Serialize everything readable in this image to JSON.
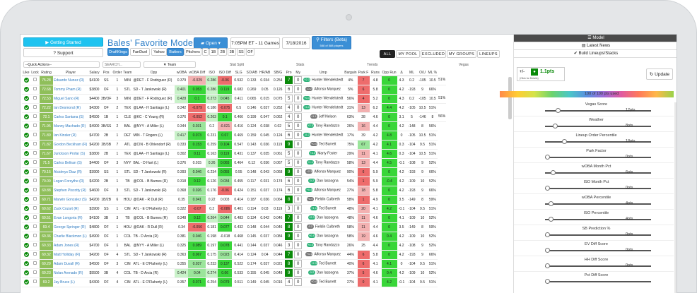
{
  "toolbar": {
    "getting_started": "Getting Started",
    "support": "Support",
    "title": "Bales' Favorite Model",
    "open": "Open",
    "slate": "7:05PM ET - 11 Games",
    "date": "7/18/2016",
    "filters": "Filters (Beta)",
    "filters_sub": "588 of 588 players",
    "quick_actions": "--Quick Actions--",
    "search_placeholder": "SEARCH...",
    "team": "Team"
  },
  "sites": [
    "DraftKings",
    "FanDuel",
    "Yahoo"
  ],
  "positions": [
    "Batters",
    "Pitchers",
    "C",
    "1B",
    "2B",
    "3B",
    "SS",
    "OF"
  ],
  "view_tabs": [
    "ALL",
    "MY POOL",
    "EXCLUDED",
    "MY GROUPS",
    "LINEUPS"
  ],
  "groups": {
    "stat_split": "Stat Split",
    "stats": "Stats",
    "trends": "Trends",
    "vegas": "Vegas"
  },
  "columns": [
    "Like",
    "Lock",
    "Rating",
    "Player",
    "Salary",
    "Pos",
    "Order",
    "Team",
    "Opp",
    "wOBA",
    "wOBA Diff",
    "ISO",
    "ISO Diff",
    "SLG",
    "SO/AB",
    "HR/AB",
    "SB/G",
    "Pro",
    "My",
    "Ump",
    "Bargain",
    "Park F",
    "Runs",
    "Opp Run",
    "Δ",
    "ML",
    "O/U",
    "ML %"
  ],
  "rows": [
    [
      "75.28",
      "Eduardo Nunez (R)",
      "$4100",
      "SS",
      "1",
      "MIN",
      "@DET - F Rodriguez (R)",
      "0.379",
      "-0.029",
      "0.286",
      "-0.06",
      "0.532",
      "0.133",
      "0.034",
      "0.254",
      "7",
      "0",
      "Hunter Wendelstedt",
      "4%",
      "7",
      "4.8",
      "0",
      "4.3",
      "0.2",
      "-105",
      "10.5",
      "51%"
    ],
    [
      "72.68",
      "Tommy Pham (R)",
      "$3800",
      "OF",
      "1",
      "STL",
      "SD - T Jankowski (R)",
      "0.401",
      "0.053",
      "0.286",
      "0.119",
      "0.682",
      "0.269",
      "0.05",
      "0.126",
      "6",
      "0",
      "Alfonso Marquez",
      "5%",
      "6",
      "5.8",
      "0",
      "4.2",
      "-193",
      "9",
      "66%"
    ],
    [
      "72.53",
      "Miguel Sano (R)",
      "$4400",
      "3B/OF",
      "3",
      "MIN",
      "@DET - F Rodriguez (R)",
      "0.428",
      "0.1",
      "0.273",
      "0.045",
      "0.411",
      "0.065",
      "0.015",
      "0.075",
      "5",
      "0",
      "Hunter Wendelstedt",
      "56%",
      "4",
      "5.2",
      "0",
      "4.3",
      "0.2",
      "-105",
      "10.5",
      "51%"
    ],
    [
      "72.22",
      "Ian Desmond (R)",
      "$4300",
      "OF",
      "2",
      "TEX",
      "@LAA - H Santiago (L)",
      "0.342",
      "-0.079",
      "0.186",
      "-0.075",
      "0.5",
      "0.146",
      "0.037",
      "0.252",
      "4",
      "0",
      "Hunter Wendelstedt",
      "31%",
      "13",
      "6.2",
      "4.4",
      "4.2",
      "-105",
      "10.5",
      "51%"
    ],
    [
      "72.1",
      "Carlos Santana (S)",
      "$4500",
      "1B",
      "1",
      "CLE",
      "@KC - C Young (R)",
      "0.376",
      "-0.052",
      "0.263",
      "0.1",
      "0.466",
      "0.199",
      "0.047",
      "0.062",
      "4",
      "0",
      "Jeff Nelson",
      "63%",
      "28",
      "4.6",
      "0",
      "3.1",
      "5",
      "-146",
      "8",
      "56%"
    ],
    [
      "71.95",
      "Manny Machado (R)",
      "$4900",
      "3B/SS",
      "2",
      "BAL",
      "@NYY - A Miller (L)",
      "0.344",
      "0.031",
      "0.2",
      "-0.021",
      "0.416",
      "0.124",
      "0.038",
      "0.02",
      "5",
      "0",
      "Tony Randazzo",
      "26%",
      "16",
      "4.4",
      "0",
      "4.2",
      "-148",
      "8",
      "56%"
    ],
    [
      "71.89",
      "Ian Kinsler (R)",
      "$4700",
      "2B",
      "1",
      "DET",
      "MIN - T Rogers (L)",
      "0.417",
      "0.073",
      "0.231",
      "0.07",
      "0.469",
      "0.159",
      "0.045",
      "0.124",
      "6",
      "0",
      "Hunter Wendelstedt",
      "17%",
      "39",
      "4.2",
      "4.8",
      "0",
      "-105",
      "10.5",
      "51%"
    ],
    [
      "71.82",
      "Gordon Beckham (R)",
      "$4200",
      "2B/3B",
      "7",
      "ATL",
      "@CIN - B Ohlendorf (R)",
      "0.333",
      "0.153",
      "0.259",
      "0.104",
      "0.547",
      "0.143",
      "0.036",
      "0.119",
      "9",
      "0",
      "Ted Barrett",
      "75%",
      "67",
      "4.2",
      "4.1",
      "0.3",
      "-104",
      "9.5",
      "51%"
    ],
    [
      "71.67",
      "Jurickson Profar (S)",
      "$3800",
      "2B",
      "1",
      "TEX",
      "@LAA - H Santiago (L)",
      "0.302",
      "0.11",
      "0.163",
      "0.119",
      "0.431",
      "0.137",
      "0.035",
      "0.061",
      "5",
      "0",
      "Marty Foster",
      "29%",
      "11",
      "4.1",
      "4.6",
      "0.3",
      "-104",
      "10.5",
      "51%"
    ],
    [
      "71.5",
      "Carlos Beltran (S)",
      "$4400",
      "OF",
      "3",
      "NYY",
      "BAL - D Hart (L)",
      "0.376",
      "0.015",
      "0.26",
      "0.065",
      "0.464",
      "0.12",
      "0.036",
      "0.067",
      "5",
      "0",
      "Tony Randazzo",
      "58%",
      "13",
      "4.4",
      "4.5",
      "-0.1",
      "-108",
      "9",
      "52%"
    ],
    [
      "70.15",
      "Alcidmys Diaz (R)",
      "$3900",
      "SS",
      "1",
      "STL",
      "SD - T Jankowski (R)",
      "0.393",
      "0.046",
      "0.234",
      "0.055",
      "0.55",
      "0.148",
      "0.043",
      "0.068",
      "9",
      "0",
      "Alfonso Marquez",
      "90%",
      "6",
      "5.9",
      "0",
      "4.2",
      "-193",
      "9",
      "66%"
    ],
    [
      "70.09",
      "Logan Forsythe (R)",
      "$4200",
      "2B",
      "1",
      "TB",
      "@COL - B Barnes (R)",
      "0.318",
      "0.12",
      "0.126",
      "0.034",
      "0.455",
      "0.117",
      "0.031",
      "0.174",
      "6",
      "0",
      "Dan Iassogna",
      "54%",
      "1",
      "5.9",
      "-0.4",
      "4.2",
      "-109",
      "10",
      "52%"
    ],
    [
      "69.88",
      "Stephen Piscotty (R)",
      "$4600",
      "OF",
      "3",
      "STL",
      "SD - T Jankowski (R)",
      "0.368",
      "0.026",
      "0.176",
      "-0.06",
      "0.424",
      "0.151",
      "0.037",
      "0.174",
      "6",
      "0",
      "Alfonso Marquez",
      "27%",
      "18",
      "5.8",
      "0",
      "4.2",
      "-193",
      "9",
      "66%"
    ],
    [
      "69.71",
      "Marwin Gonzalez (S)",
      "$4200",
      "1B/2B",
      "6",
      "HOU",
      "@OAK - R Dull (R)",
      "0.35",
      "0.041",
      "0.22",
      "0.003",
      "0.414",
      "0.187",
      "0.036",
      "0.064",
      "8",
      "0",
      "Fieldin Culbreth",
      "58%",
      "1",
      "4.9",
      "0",
      "3.5",
      "-149",
      "8",
      "59%"
    ],
    [
      "69.62",
      "Zack Cozart (R)",
      "$3900",
      "SS",
      "1",
      "CIN",
      "ATL - E O'Flaherty (L)",
      "0.322",
      "-0.07",
      "0.2",
      "-0.086",
      "0.401",
      "0.114",
      "0.03",
      "0.119",
      "3",
      "0",
      "Ted Barrett",
      "48%",
      "20",
      "4.1",
      "4.2",
      "-0.1",
      "-104",
      "9.5",
      "51%"
    ],
    [
      "69.51",
      "Evan Longoria (R)",
      "$4100",
      "3B",
      "3",
      "TB",
      "@COL - B Barnes (R)",
      "0.348",
      "0.12",
      "0.264",
      "0.044",
      "0.483",
      "0.134",
      "0.042",
      "0.046",
      "7",
      "0",
      "Dan Iassogna",
      "48%",
      "11",
      "4.6",
      "0",
      "4.1",
      "-109",
      "10",
      "52%"
    ],
    [
      "69.4",
      "George Springer (R)",
      "$4800",
      "OF",
      "1",
      "HOU",
      "@OAK - R Dull (R)",
      "0.34",
      "-0.056",
      "0.181",
      "0.077",
      "0.432",
      "0.148",
      "0.044",
      "0.046",
      "8",
      "0",
      "Fieldin Culbreth",
      "58%",
      "11",
      "4.4",
      "0",
      "3.5",
      "-149",
      "8",
      "59%"
    ],
    [
      "69.36",
      "Charlie Blackmon (L)",
      "$4900",
      "OF",
      "1",
      "COL",
      "TB - D Arcia (R)",
      "0.381",
      "0.046",
      "0.198",
      "-0.018",
      "0.468",
      "0.145",
      "0.037",
      "0.084",
      "9",
      "0",
      "Dan Iassogna",
      "58%",
      "19",
      "4.6",
      "0.4",
      "4.2",
      "-109",
      "10",
      "52%"
    ],
    [
      "69.33",
      "Adam Jones (R)",
      "$4700",
      "OF",
      "1",
      "BAL",
      "@NYY - A Miller (L)",
      "0.325",
      "0.089",
      "0.197",
      "0.078",
      "0.441",
      "0.144",
      "0.037",
      "0.046",
      "3",
      "0",
      "Tony Randazzo",
      "26%",
      "25",
      "4.4",
      "0",
      "4.2",
      "-108",
      "9",
      "52%"
    ],
    [
      "69.32",
      "Matt Holliday (R)",
      "$4200",
      "OF",
      "4",
      "STL",
      "SD - T Jankowski (R)",
      "0.363",
      "0.067",
      "0.175",
      "0.023",
      "0.414",
      "0.124",
      "0.04",
      "0.044",
      "7",
      "0",
      "Alfonso Marquez",
      "44%",
      "6",
      "5.8",
      "0",
      "4.2",
      "-193",
      "9",
      "66%"
    ],
    [
      "69.29",
      "Adam Duvall (R)",
      "$4500",
      "OF",
      "3",
      "CIN",
      "ATL - E O'Flaherty (L)",
      "0.355",
      "0.037",
      "0.233",
      "0.137",
      "0.522",
      "0.174",
      "0.037",
      "0.021",
      "8",
      "0",
      "Ted Barrett",
      "40%",
      "6",
      "4.1",
      "4.1",
      "0",
      "-104",
      "9.5",
      "51%"
    ],
    [
      "69.23",
      "Nolan Arenado (R)",
      "$5500",
      "3B",
      "4",
      "COL",
      "TB - D Arcia (R)",
      "0.424",
      "0.04",
      "0.274",
      "0.06",
      "0.533",
      "0.155",
      "0.045",
      "0.048",
      "9",
      "0",
      "Dan Iassogna",
      "37%",
      "5",
      "4.6",
      "0.4",
      "4.2",
      "-109",
      "10",
      "52%"
    ],
    [
      "69.2",
      "Jay Bruce (L)",
      "$4300",
      "OF",
      "4",
      "CIN",
      "ATL - E O'Flaherty (L)",
      "0.357",
      "0.071",
      "0.254",
      "0.079",
      "0.511",
      "0.149",
      "0.045",
      "0.016",
      "4",
      "0",
      "Ted Barrett",
      "27%",
      "0",
      "4.1",
      "4.2",
      "-0.1",
      "-104",
      "9.5",
      "51%"
    ]
  ],
  "ump_badges": [
    "+2.3",
    "-0.2",
    "+0.4",
    "+4.0",
    "+1.1"
  ],
  "right": {
    "model": "Model",
    "news": "Latest News",
    "build": "Build Lineups/Stacks",
    "points": "1.1pts",
    "points_sub": "(Click for Details)",
    "update": "Update",
    "used": "100 of 100 pts used",
    "sliders": [
      {
        "label": "Vegas Score",
        "value": "12pts",
        "pos": 0.1
      },
      {
        "label": "Weather",
        "value": "8pts",
        "pos": 0.07
      },
      {
        "label": "Lineup Order Percentile",
        "value": "18pts",
        "pos": 0.16
      },
      {
        "label": "Park Factor",
        "value": "0pts",
        "pos": 0
      },
      {
        "label": "wOBA Month Pct",
        "value": "6pts",
        "pos": 0.05
      },
      {
        "label": "ISO Month Pct",
        "value": "0pts",
        "pos": 0
      },
      {
        "label": "wOBA Percentile",
        "value": "4pts",
        "pos": 0.03
      },
      {
        "label": "ISO Percentile",
        "value": "4pts",
        "pos": 0.03
      },
      {
        "label": "SB Prediction %",
        "value": "0pts",
        "pos": 0
      },
      {
        "label": "EV Diff Score",
        "value": "0pts",
        "pos": 0
      },
      {
        "label": "HH Diff Score",
        "value": "0pts",
        "pos": 0
      },
      {
        "label": "Pct Diff Score",
        "value": "",
        "pos": 0
      }
    ]
  },
  "colors": {
    "accent": "#3b8fd6",
    "good": "#39d639",
    "bad": "#ee6c6c"
  }
}
